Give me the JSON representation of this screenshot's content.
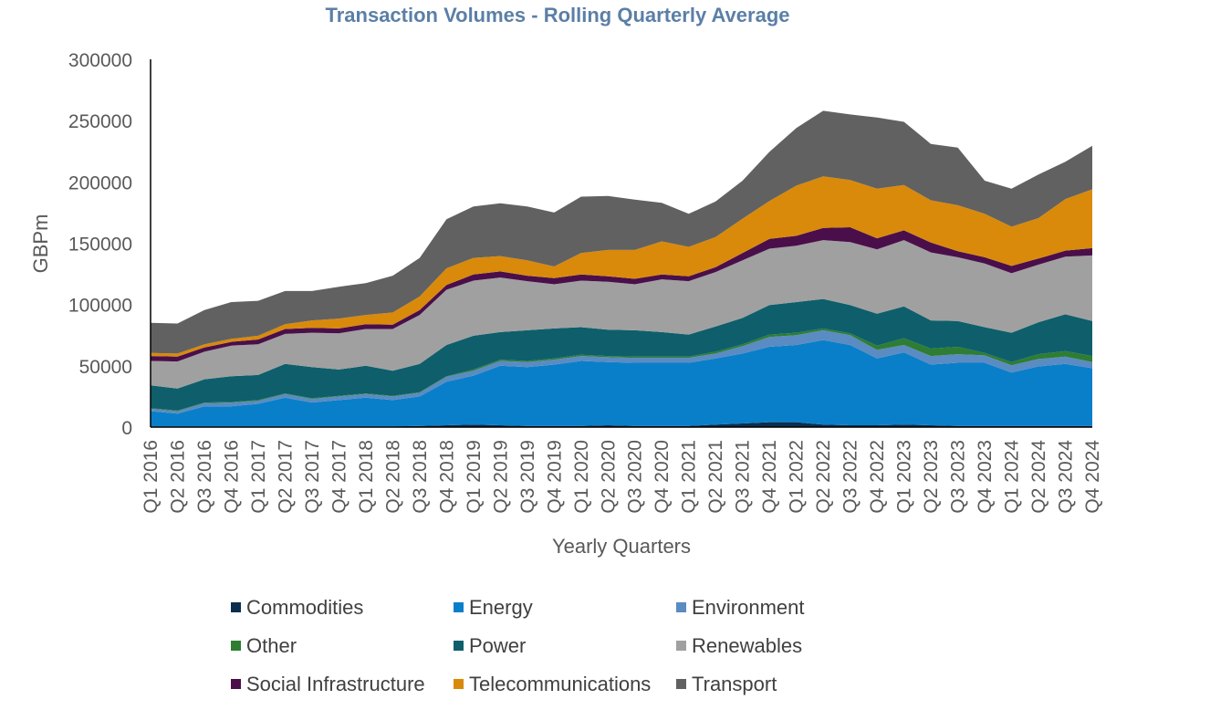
{
  "chart_data": {
    "type": "area",
    "stacked": true,
    "title": "Transaction Volumes - Rolling Quarterly Average",
    "title_color": "#5B7FA6",
    "xlabel": "Yearly Quarters",
    "ylabel": "GBPm",
    "ylim": [
      0,
      300000
    ],
    "yticks": [
      "0",
      "50000",
      "100000",
      "150000",
      "200000",
      "250000",
      "300000"
    ],
    "categories": [
      "Q1 2016",
      "Q2 2016",
      "Q3 2016",
      "Q4 2016",
      "Q1 2017",
      "Q2 2017",
      "Q3 2017",
      "Q4 2017",
      "Q1 2018",
      "Q2 2018",
      "Q3 2018",
      "Q4 2018",
      "Q1 2019",
      "Q2 2019",
      "Q3 2019",
      "Q4 2019",
      "Q1 2020",
      "Q2 2020",
      "Q3 2020",
      "Q4 2020",
      "Q1 2021",
      "Q2 2021",
      "Q3 2021",
      "Q4 2021",
      "Q1 2022",
      "Q2 2022",
      "Q3 2022",
      "Q4 2022",
      "Q1 2023",
      "Q2 2023",
      "Q3 2023",
      "Q4 2023",
      "Q1 2024",
      "Q2 2024",
      "Q3 2024",
      "Q4 2024"
    ],
    "legend_position": "bottom",
    "series": [
      {
        "name": "Commodities",
        "color": "#0B2E4F",
        "values": [
          500,
          500,
          500,
          500,
          500,
          500,
          500,
          500,
          500,
          500,
          1000,
          1500,
          2000,
          1500,
          1000,
          1000,
          1000,
          1500,
          1000,
          1000,
          1000,
          2000,
          3000,
          4000,
          4000,
          2000,
          1500,
          1500,
          2000,
          1500,
          1000,
          1000,
          1000,
          1000,
          1000,
          1000
        ]
      },
      {
        "name": "Energy",
        "color": "#0A7FC9",
        "values": [
          12500,
          10500,
          16500,
          16500,
          18500,
          23500,
          19500,
          21500,
          23500,
          21500,
          24000,
          35500,
          40000,
          48500,
          48000,
          50000,
          53000,
          51500,
          51500,
          51500,
          51500,
          54000,
          57000,
          61500,
          63000,
          69000,
          65500,
          54500,
          59000,
          49500,
          51500,
          51500,
          43500,
          48500,
          50500,
          47000
        ]
      },
      {
        "name": "Environment",
        "color": "#5A8BC2",
        "values": [
          2000,
          2000,
          2500,
          3000,
          2500,
          3000,
          3000,
          3000,
          3000,
          3000,
          3000,
          4000,
          4000,
          4000,
          4000,
          4000,
          4000,
          4000,
          4000,
          4000,
          4000,
          4000,
          6000,
          8000,
          8000,
          8000,
          8000,
          7000,
          6000,
          7000,
          7000,
          6000,
          6000,
          6000,
          6000,
          5000
        ]
      },
      {
        "name": "Other",
        "color": "#2E7D32",
        "values": [
          500,
          500,
          500,
          500,
          500,
          500,
          500,
          500,
          500,
          500,
          500,
          500,
          1000,
          1000,
          1000,
          1000,
          1000,
          1000,
          1000,
          1000,
          1000,
          1500,
          1500,
          2000,
          2000,
          1500,
          1500,
          3500,
          5500,
          6000,
          6000,
          2000,
          2500,
          4000,
          4500,
          5000
        ]
      },
      {
        "name": "Power",
        "color": "#0E5F6B",
        "values": [
          18500,
          18000,
          19000,
          21000,
          20500,
          24000,
          25500,
          21500,
          22500,
          20500,
          23000,
          25500,
          27500,
          22500,
          25000,
          24500,
          22500,
          21500,
          21500,
          20000,
          18000,
          20500,
          21500,
          24000,
          25000,
          24000,
          23000,
          26000,
          26000,
          23000,
          21000,
          21000,
          24000,
          26000,
          30000,
          28500
        ]
      },
      {
        "name": "Renewables",
        "color": "#A0A0A0",
        "values": [
          20000,
          22000,
          22500,
          25000,
          25000,
          24500,
          28000,
          29500,
          30000,
          34000,
          40000,
          45000,
          45000,
          44500,
          40000,
          36000,
          38000,
          39000,
          37500,
          43000,
          43500,
          44500,
          47000,
          46000,
          46000,
          48000,
          51500,
          52500,
          54000,
          55500,
          52000,
          52000,
          48500,
          47000,
          47000,
          53500
        ]
      },
      {
        "name": "Social Infrastructure",
        "color": "#4A0F4A",
        "values": [
          4000,
          4000,
          3500,
          3000,
          4000,
          4000,
          4000,
          4000,
          4000,
          3500,
          4000,
          4000,
          5000,
          5000,
          4500,
          5000,
          5000,
          4500,
          4500,
          4000,
          4000,
          4000,
          6000,
          8000,
          8000,
          10000,
          12000,
          9000,
          8000,
          8000,
          5000,
          5000,
          6000,
          5000,
          5000,
          6000
        ]
      },
      {
        "name": "Telecommunications",
        "color": "#D98A0B",
        "values": [
          2500,
          2500,
          2500,
          2500,
          3000,
          4000,
          6000,
          8000,
          7500,
          10000,
          11000,
          13500,
          13500,
          12500,
          12500,
          9500,
          17500,
          21500,
          23500,
          27000,
          24000,
          24500,
          28000,
          31000,
          41000,
          42000,
          38500,
          40500,
          37000,
          34500,
          37500,
          35500,
          32000,
          33000,
          42000,
          48000
        ]
      },
      {
        "name": "Transport",
        "color": "#616161",
        "values": [
          24500,
          24500,
          28000,
          30000,
          28500,
          27000,
          24000,
          26000,
          26000,
          30000,
          31500,
          40000,
          42000,
          43000,
          44000,
          44000,
          46000,
          44000,
          41000,
          31500,
          27000,
          29000,
          31000,
          40000,
          47000,
          53500,
          53500,
          58000,
          51500,
          46000,
          47000,
          27000,
          31000,
          35500,
          30500,
          35500
        ]
      }
    ]
  }
}
